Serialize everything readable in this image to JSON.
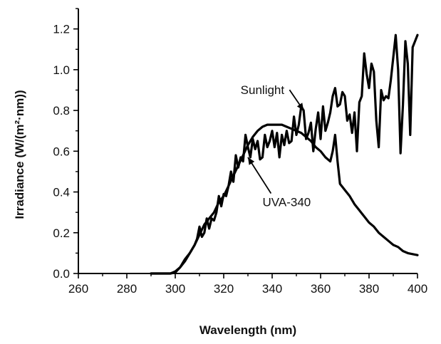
{
  "chart_data": {
    "type": "line",
    "title": "",
    "xlabel": "Wavelength (nm)",
    "ylabel": "Irradiance (W/(m²·nm))",
    "xlim": [
      260,
      400
    ],
    "ylim": [
      0,
      1.3
    ],
    "xticks": [
      260,
      280,
      300,
      320,
      340,
      360,
      380,
      400
    ],
    "xtick_labels": [
      "260",
      "280",
      "300",
      "320",
      "340",
      "360",
      "380",
      "400"
    ],
    "yticks": [
      0,
      0.2,
      0.4,
      0.6,
      0.8,
      1.0,
      1.2
    ],
    "ytick_labels": [
      "0.0",
      "0.2",
      "0.4",
      "0.6",
      "0.8",
      "1.0",
      "1.2"
    ],
    "grid": false,
    "legend": "none",
    "series": [
      {
        "name": "Sunlight",
        "color": "#000000",
        "x": [
          290,
          298,
          300,
          302,
          304,
          306,
          308,
          309,
          310,
          311,
          312,
          313,
          314,
          315,
          316,
          317,
          318,
          319,
          320,
          321,
          322,
          323,
          324,
          325,
          326,
          327,
          328,
          329,
          330,
          331,
          332,
          333,
          334,
          335,
          336,
          337,
          338,
          339,
          340,
          341,
          342,
          343,
          344,
          345,
          346,
          347,
          348,
          349,
          350,
          351,
          352,
          353,
          354,
          355,
          356,
          357,
          358,
          359,
          360,
          361,
          362,
          363,
          364,
          365,
          366,
          367,
          368,
          369,
          370,
          371,
          372,
          373,
          374,
          375,
          376,
          377,
          378,
          379,
          380,
          381,
          382,
          383,
          384,
          385,
          386,
          387,
          388,
          389,
          390,
          391,
          392,
          393,
          394,
          395,
          396,
          397,
          398,
          399,
          400
        ],
        "y": [
          0.0,
          0.0,
          0.005,
          0.03,
          0.07,
          0.1,
          0.14,
          0.17,
          0.23,
          0.18,
          0.2,
          0.27,
          0.22,
          0.27,
          0.26,
          0.3,
          0.38,
          0.33,
          0.39,
          0.38,
          0.43,
          0.5,
          0.45,
          0.58,
          0.52,
          0.57,
          0.55,
          0.68,
          0.62,
          0.57,
          0.66,
          0.61,
          0.65,
          0.56,
          0.57,
          0.68,
          0.62,
          0.65,
          0.7,
          0.62,
          0.69,
          0.57,
          0.68,
          0.63,
          0.7,
          0.64,
          0.65,
          0.77,
          0.68,
          0.73,
          0.82,
          0.8,
          0.66,
          0.69,
          0.74,
          0.6,
          0.71,
          0.79,
          0.66,
          0.82,
          0.7,
          0.74,
          0.79,
          0.87,
          0.91,
          0.82,
          0.83,
          0.89,
          0.87,
          0.75,
          0.78,
          0.69,
          0.79,
          0.6,
          0.84,
          0.87,
          1.08,
          0.98,
          0.91,
          1.03,
          0.99,
          0.75,
          0.62,
          0.9,
          0.85,
          0.87,
          0.86,
          0.95,
          1.06,
          1.17,
          1.0,
          0.59,
          0.83,
          1.14,
          1.03,
          0.68,
          1.11,
          1.14,
          1.17
        ]
      },
      {
        "name": "UVA-340",
        "color": "#000000",
        "x": [
          290,
          298,
          300,
          302,
          304,
          306,
          308,
          310,
          312,
          314,
          316,
          318,
          320,
          322,
          324,
          326,
          328,
          330,
          332,
          334,
          336,
          338,
          340,
          342,
          344,
          346,
          348,
          350,
          352,
          354,
          356,
          358,
          360,
          362,
          364,
          365,
          366,
          367,
          368,
          370,
          372,
          374,
          376,
          378,
          380,
          382,
          384,
          386,
          388,
          390,
          392,
          394,
          396,
          398,
          400
        ],
        "y": [
          0.0,
          0.0,
          0.01,
          0.03,
          0.06,
          0.1,
          0.14,
          0.19,
          0.24,
          0.27,
          0.3,
          0.35,
          0.38,
          0.43,
          0.48,
          0.53,
          0.58,
          0.63,
          0.67,
          0.7,
          0.72,
          0.73,
          0.73,
          0.73,
          0.73,
          0.72,
          0.71,
          0.7,
          0.69,
          0.67,
          0.65,
          0.62,
          0.6,
          0.57,
          0.55,
          0.6,
          0.68,
          0.55,
          0.44,
          0.41,
          0.38,
          0.34,
          0.31,
          0.28,
          0.25,
          0.23,
          0.2,
          0.18,
          0.16,
          0.14,
          0.13,
          0.11,
          0.1,
          0.095,
          0.09
        ]
      }
    ],
    "annotations": [
      {
        "text": "Sunlight",
        "label_at": [
          336,
          0.88
        ],
        "arrow_to": [
          353,
          0.8
        ]
      },
      {
        "text": "UVA-340",
        "label_at": [
          346,
          0.33
        ],
        "arrow_to": [
          330,
          0.57
        ]
      }
    ]
  }
}
